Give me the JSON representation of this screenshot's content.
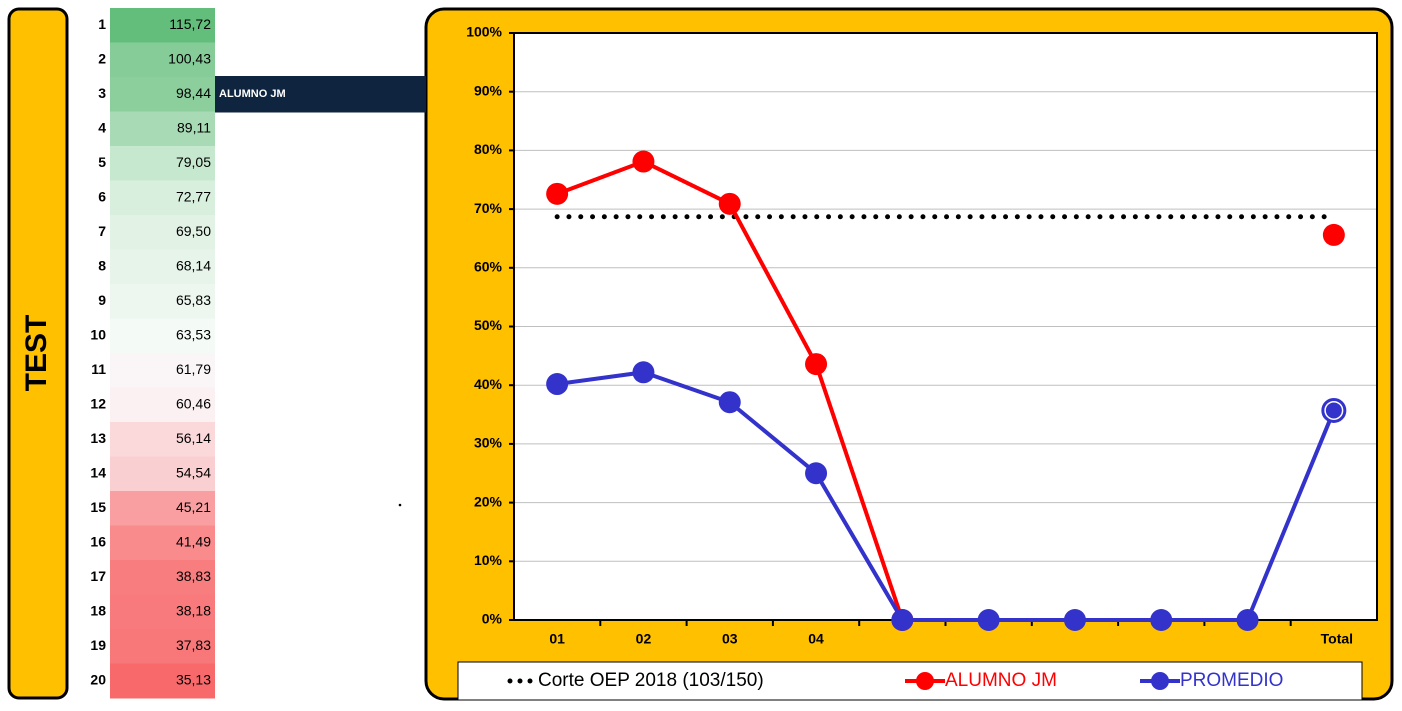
{
  "side_label": "TEST",
  "ranking": {
    "rows": [
      {
        "rank": "1",
        "score": "115,72",
        "color": "#63be7b"
      },
      {
        "rank": "2",
        "score": "100,43",
        "color": "#85cc98"
      },
      {
        "rank": "3",
        "score": "98,44",
        "color": "#8ccf9d"
      },
      {
        "rank": "4",
        "score": "89,11",
        "color": "#a8dbb5"
      },
      {
        "rank": "5",
        "score": "79,05",
        "color": "#c6e8ce"
      },
      {
        "rank": "6",
        "score": "72,77",
        "color": "#d9efde"
      },
      {
        "rank": "7",
        "score": "69,50",
        "color": "#e2f3e6"
      },
      {
        "rank": "8",
        "score": "68,14",
        "color": "#e6f4e9"
      },
      {
        "rank": "9",
        "score": "65,83",
        "color": "#edf7f0"
      },
      {
        "rank": "10",
        "score": "63,53",
        "color": "#f4faf6"
      },
      {
        "rank": "11",
        "score": "61,79",
        "color": "#faf6f8"
      },
      {
        "rank": "12",
        "score": "60,46",
        "color": "#fbf0f2"
      },
      {
        "rank": "13",
        "score": "56,14",
        "color": "#fbd8da"
      },
      {
        "rank": "14",
        "score": "54,54",
        "color": "#facfd1"
      },
      {
        "rank": "15",
        "score": "45,21",
        "color": "#f99fa1"
      },
      {
        "rank": "16",
        "score": "41,49",
        "color": "#f98b8d"
      },
      {
        "rank": "17",
        "score": "38,83",
        "color": "#f87d7f"
      },
      {
        "rank": "18",
        "score": "38,18",
        "color": "#f87a7c"
      },
      {
        "rank": "19",
        "score": "37,83",
        "color": "#f8787a"
      },
      {
        "rank": "20",
        "score": "35,13",
        "color": "#f8696b"
      }
    ],
    "highlight": {
      "row": 2,
      "label": "ALUMNO JM"
    }
  },
  "chart_data": {
    "type": "line",
    "categories": [
      "01",
      "02",
      "03",
      "04",
      null,
      null,
      null,
      null,
      null,
      "Total"
    ],
    "series": [
      {
        "name": "Corte OEP 2018 (103/150)",
        "color": "#000000",
        "style": "dotted",
        "values": [
          68.7,
          68.7,
          68.7,
          68.7,
          68.7,
          68.7,
          68.7,
          68.7,
          68.7,
          68.7
        ]
      },
      {
        "name": "ALUMNO JM",
        "color": "#ff0000",
        "style": "solid",
        "values": [
          72.6,
          78.1,
          70.9,
          43.6,
          0,
          null,
          null,
          null,
          null,
          65.6
        ]
      },
      {
        "name": "PROMEDIO",
        "color": "#3333cc",
        "style": "solid",
        "values": [
          40.2,
          42.2,
          37.1,
          25.0,
          0,
          0,
          0,
          0,
          0,
          35.7
        ]
      }
    ],
    "ylim": [
      0,
      100
    ],
    "yticks": [
      {
        "value": 0,
        "label": "0%"
      },
      {
        "value": 10,
        "label": "10%"
      },
      {
        "value": 20,
        "label": "20%"
      },
      {
        "value": 30,
        "label": "30%"
      },
      {
        "value": 40,
        "label": "40%"
      },
      {
        "value": 50,
        "label": "50%"
      },
      {
        "value": 60,
        "label": "60%"
      },
      {
        "value": 70,
        "label": "70%"
      },
      {
        "value": 80,
        "label": "80%"
      },
      {
        "value": 90,
        "label": "90%"
      },
      {
        "value": 100,
        "label": "100%"
      }
    ],
    "grid": true,
    "legend": "bottom"
  }
}
